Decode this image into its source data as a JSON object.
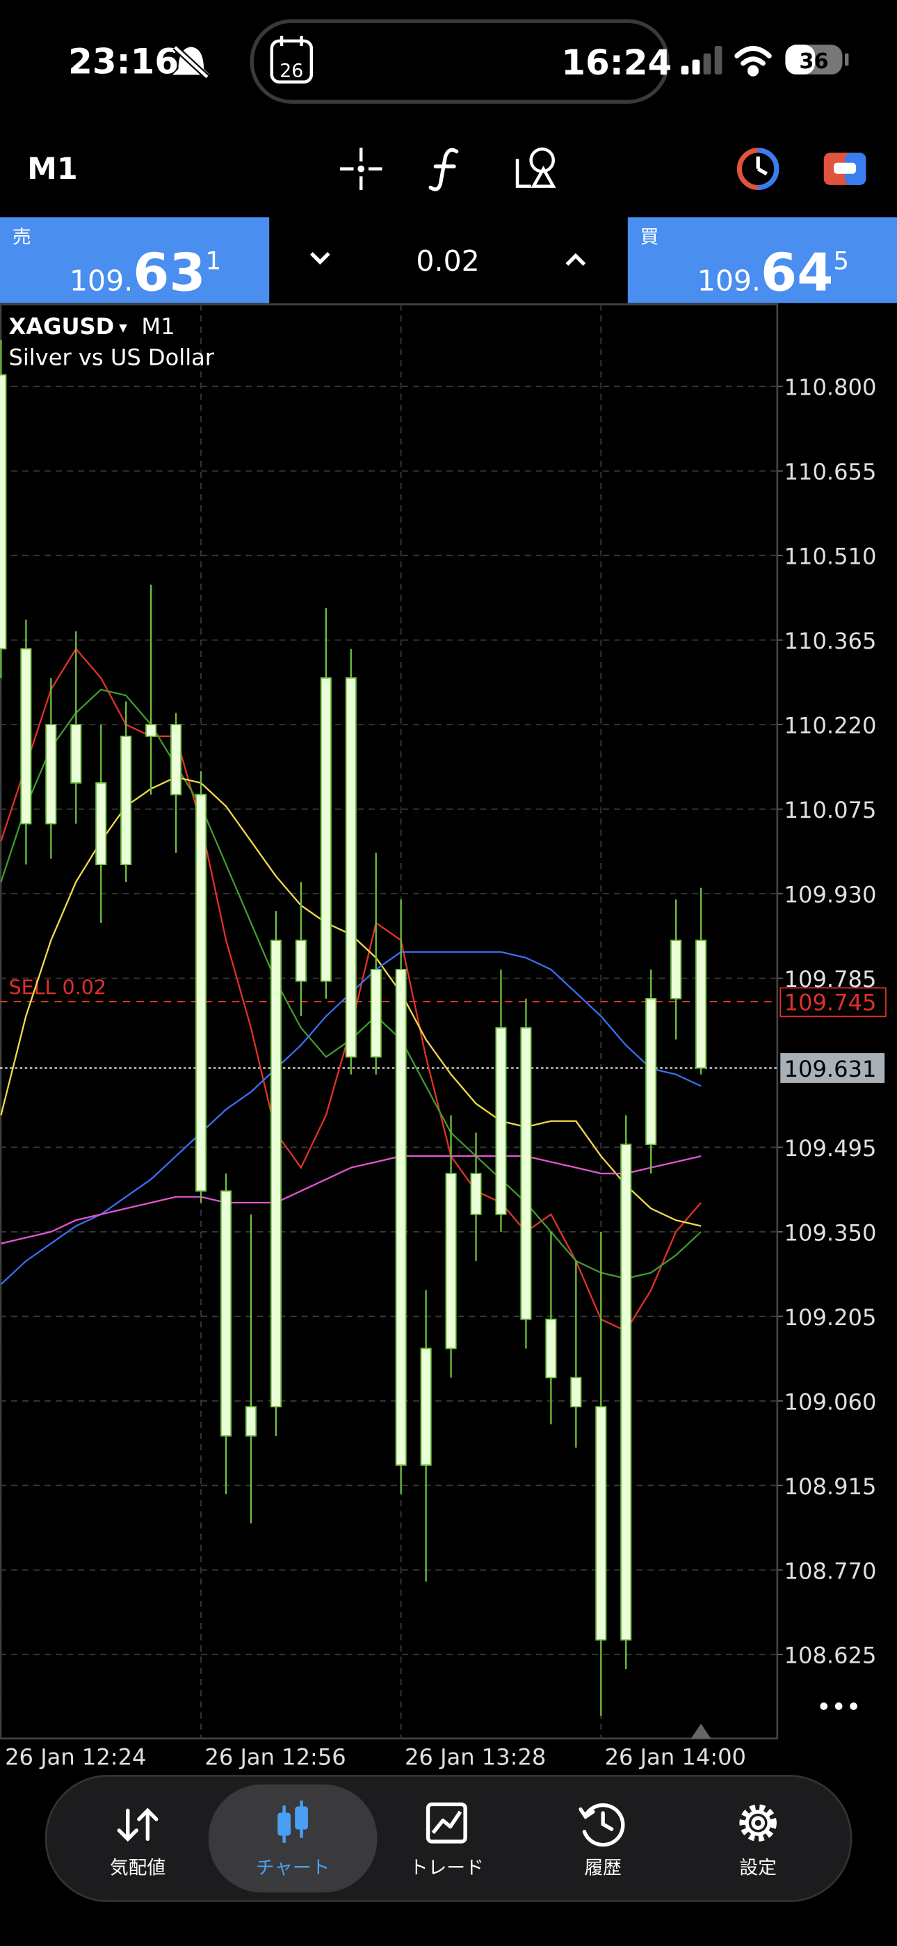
{
  "status_bar": {
    "time": "23:16",
    "calendar_day": "26",
    "island_time": "16:24",
    "battery": "36"
  },
  "toolbar": {
    "timeframe": "M1"
  },
  "quote_bar": {
    "sell": {
      "label": "売",
      "big": "109.",
      "main": "63",
      "sup": "1"
    },
    "volume": "0.02",
    "buy": {
      "label": "買",
      "big": "109.",
      "main": "64",
      "sup": "5"
    }
  },
  "chart_data": {
    "type": "candlestick",
    "symbol": "XAGUSD",
    "symbol_arrow": "▾",
    "timeframe": "M1",
    "subtitle": "Silver vs US Dollar",
    "categories": [
      null,
      null,
      null,
      null,
      null,
      null,
      null,
      null,
      null,
      null,
      null,
      null,
      null,
      null,
      null,
      null,
      null,
      null,
      null,
      null,
      null,
      null,
      null,
      null,
      null,
      null,
      null,
      null,
      null
    ],
    "open": [
      110.82,
      110.35,
      110.05,
      110.22,
      110.12,
      109.98,
      110.2,
      110.22,
      110.1,
      109.42,
      109.0,
      109.05,
      109.85,
      109.78,
      110.3,
      109.65,
      109.8,
      108.95,
      109.15,
      109.45,
      109.38,
      109.7,
      109.2,
      109.1,
      109.05,
      108.65,
      109.5,
      109.75,
      109.85
    ],
    "high": [
      110.88,
      110.4,
      110.3,
      110.38,
      110.22,
      110.26,
      110.46,
      110.24,
      110.14,
      109.45,
      109.38,
      109.9,
      109.95,
      110.42,
      110.35,
      110.0,
      109.92,
      109.25,
      109.55,
      109.52,
      109.8,
      109.75,
      109.35,
      109.3,
      109.35,
      109.55,
      109.8,
      109.92,
      109.94
    ],
    "low": [
      110.3,
      109.98,
      109.99,
      110.05,
      109.88,
      109.95,
      110.1,
      110.0,
      109.4,
      108.9,
      108.85,
      109.0,
      109.72,
      109.75,
      109.62,
      109.62,
      108.9,
      108.75,
      109.1,
      109.3,
      109.35,
      109.15,
      109.02,
      108.98,
      108.52,
      108.6,
      109.45,
      109.68,
      109.62
    ],
    "close": [
      110.35,
      110.05,
      110.22,
      110.12,
      109.98,
      110.2,
      110.22,
      110.1,
      109.42,
      109.0,
      109.05,
      109.85,
      109.78,
      110.3,
      109.65,
      109.8,
      108.95,
      109.15,
      109.45,
      109.38,
      109.7,
      109.2,
      109.1,
      109.05,
      108.65,
      109.5,
      109.75,
      109.85,
      109.631
    ],
    "candle_color": "#eaffd8",
    "wick_color": "#6fbf3f",
    "ma": [
      {
        "color": "#e0312b",
        "values": [
          110.02,
          110.15,
          110.28,
          110.35,
          110.3,
          110.22,
          110.2,
          110.2,
          110.05,
          109.85,
          109.7,
          109.52,
          109.46,
          109.55,
          109.7,
          109.88,
          109.85,
          109.65,
          109.48,
          109.42,
          109.4,
          109.35,
          109.38,
          109.3,
          109.2,
          109.18,
          109.25,
          109.35,
          109.4
        ]
      },
      {
        "color": "#3f9a2e",
        "values": [
          109.95,
          110.08,
          110.18,
          110.24,
          110.28,
          110.27,
          110.22,
          110.15,
          110.08,
          109.98,
          109.88,
          109.78,
          109.7,
          109.65,
          109.68,
          109.72,
          109.68,
          109.6,
          109.52,
          109.48,
          109.44,
          109.4,
          109.35,
          109.3,
          109.28,
          109.27,
          109.28,
          109.31,
          109.35
        ]
      },
      {
        "color": "#f2d94a",
        "values": [
          109.55,
          109.72,
          109.85,
          109.95,
          110.02,
          110.08,
          110.11,
          110.13,
          110.12,
          110.08,
          110.02,
          109.96,
          109.91,
          109.88,
          109.86,
          109.82,
          109.76,
          109.68,
          109.62,
          109.57,
          109.54,
          109.53,
          109.54,
          109.54,
          109.48,
          109.43,
          109.39,
          109.37,
          109.36
        ]
      },
      {
        "color": "#3a6ff0",
        "values": [
          109.26,
          109.3,
          109.33,
          109.36,
          109.38,
          109.41,
          109.44,
          109.48,
          109.52,
          109.56,
          109.59,
          109.63,
          109.67,
          109.72,
          109.76,
          109.8,
          109.83,
          109.83,
          109.83,
          109.83,
          109.83,
          109.82,
          109.8,
          109.76,
          109.72,
          109.67,
          109.63,
          109.62,
          109.6
        ]
      },
      {
        "color": "#e055d0",
        "values": [
          109.33,
          109.34,
          109.35,
          109.37,
          109.38,
          109.39,
          109.4,
          109.41,
          109.41,
          109.4,
          109.4,
          109.4,
          109.42,
          109.44,
          109.46,
          109.47,
          109.48,
          109.48,
          109.48,
          109.48,
          109.48,
          109.48,
          109.47,
          109.46,
          109.45,
          109.45,
          109.46,
          109.47,
          109.48
        ]
      }
    ],
    "ylim": [
      108.481,
      110.941
    ],
    "yticks": [
      {
        "value": 110.8,
        "label": "110.800"
      },
      110.655,
      {
        "value": 110.51,
        "label": "110.510"
      },
      110.365,
      {
        "value": 110.22,
        "label": "110.220"
      },
      110.075,
      {
        "value": 109.93,
        "label": "109.930"
      },
      109.785,
      109.495,
      {
        "value": 109.35,
        "label": "109.350"
      },
      109.205,
      {
        "value": 109.06,
        "label": "109.060"
      },
      108.915,
      {
        "value": 108.77,
        "label": "108.770"
      },
      108.625
    ],
    "xticks": [
      {
        "value": 0,
        "label": "26 Jan 12:24"
      },
      {
        "value": 8,
        "label": "26 Jan 12:56"
      },
      {
        "value": 16,
        "label": "26 Jan 13:28"
      },
      {
        "value": 24,
        "label": "26 Jan 14:00"
      }
    ],
    "grid": true,
    "order_line": {
      "text": "SELL 0.02",
      "value": 109.745,
      "label": "109.745",
      "color": "#e0312b"
    },
    "bid_line": {
      "value": 109.631,
      "label": "109.631"
    }
  },
  "bottom_nav": {
    "items": [
      "気配値",
      "チャート",
      "トレード",
      "履歴",
      "設定"
    ],
    "selected": 1
  }
}
